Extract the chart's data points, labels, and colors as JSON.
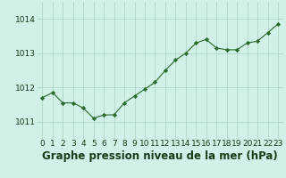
{
  "x": [
    0,
    1,
    2,
    3,
    4,
    5,
    6,
    7,
    8,
    9,
    10,
    11,
    12,
    13,
    14,
    15,
    16,
    17,
    18,
    19,
    20,
    21,
    22,
    23
  ],
  "y": [
    1011.7,
    1011.85,
    1011.55,
    1011.55,
    1011.4,
    1011.1,
    1011.2,
    1011.2,
    1011.55,
    1011.75,
    1011.95,
    1012.15,
    1012.5,
    1012.8,
    1013.0,
    1013.3,
    1013.4,
    1013.15,
    1013.1,
    1013.1,
    1013.3,
    1013.35,
    1013.6,
    1013.85
  ],
  "line_color": "#2d6a2d",
  "marker_color": "#2d6a2d",
  "bg_color": "#d0f0e8",
  "grid_color": "#b0d8c8",
  "title": "Graphe pression niveau de la mer (hPa)",
  "ylim_min": 1010.5,
  "ylim_max": 1014.5,
  "yticks": [
    1011,
    1012,
    1013,
    1014
  ],
  "title_fontsize": 8.5,
  "title_color": "#1a3a1a",
  "tick_fontsize": 6.5
}
